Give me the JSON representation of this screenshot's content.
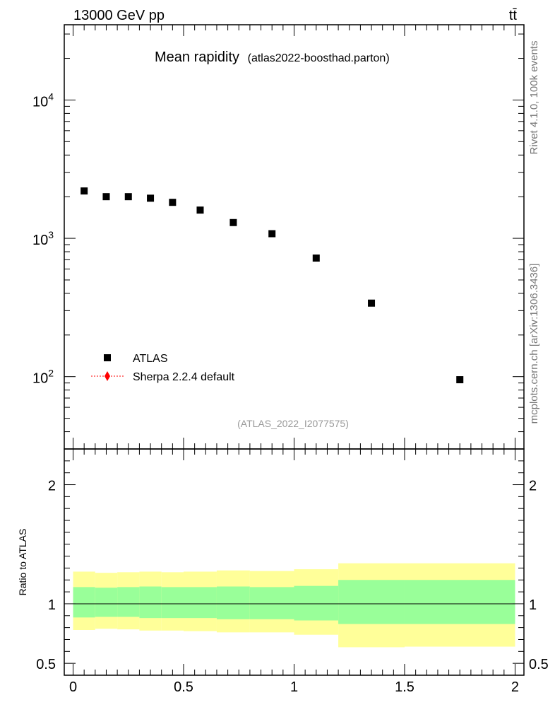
{
  "chart_data": {
    "type": "scatter",
    "header_left": "13000 GeV pp",
    "header_right": "tt̄",
    "title": "Mean rapidity",
    "subtitle": "(atlas2022-boosthad.parton)",
    "side_text_top": "Rivet 4.1.0,  100k events",
    "side_text_bottom": "mcplots.cern.ch [arXiv:1306.3436]",
    "watermark": "(ATLAS_2022_I2077575)",
    "legend": [
      {
        "name": "ATLAS",
        "marker": "square",
        "color": "#000000"
      },
      {
        "name": "Sherpa 2.2.4 default",
        "marker": "diamond",
        "color": "#ff0000"
      }
    ],
    "main": {
      "yscale": "log",
      "ylim": [
        30,
        35000
      ],
      "ytick_labels": [
        {
          "base": "10",
          "exp": "2",
          "value": 100
        },
        {
          "base": "10",
          "exp": "3",
          "value": 1000
        },
        {
          "base": "10",
          "exp": "4",
          "value": 10000
        }
      ],
      "series": [
        {
          "name": "ATLAS",
          "x": [
            0.05,
            0.15,
            0.25,
            0.35,
            0.45,
            0.575,
            0.725,
            0.9,
            1.1,
            1.35,
            1.75
          ],
          "y": [
            2200,
            2000,
            2000,
            1950,
            1820,
            1600,
            1300,
            1080,
            720,
            340,
            95
          ]
        }
      ]
    },
    "ratio": {
      "ylabel": "Ratio to ATLAS",
      "ylim": [
        0.4,
        2.3
      ],
      "ytick_labels": [
        "0.5",
        "1",
        "2"
      ],
      "ytick_values": [
        0.5,
        1,
        2
      ],
      "bands": [
        {
          "lo": 0.0,
          "hi": 0.1,
          "inner": [
            0.885,
            1.14
          ],
          "outer": [
            0.78,
            1.27
          ]
        },
        {
          "lo": 0.1,
          "hi": 0.2,
          "inner": [
            0.89,
            1.135
          ],
          "outer": [
            0.79,
            1.26
          ]
        },
        {
          "lo": 0.2,
          "hi": 0.3,
          "inner": [
            0.89,
            1.14
          ],
          "outer": [
            0.785,
            1.265
          ]
        },
        {
          "lo": 0.3,
          "hi": 0.4,
          "inner": [
            0.88,
            1.145
          ],
          "outer": [
            0.775,
            1.27
          ]
        },
        {
          "lo": 0.4,
          "hi": 0.5,
          "inner": [
            0.88,
            1.14
          ],
          "outer": [
            0.775,
            1.265
          ]
        },
        {
          "lo": 0.5,
          "hi": 0.65,
          "inner": [
            0.88,
            1.14
          ],
          "outer": [
            0.77,
            1.27
          ]
        },
        {
          "lo": 0.65,
          "hi": 0.8,
          "inner": [
            0.87,
            1.145
          ],
          "outer": [
            0.76,
            1.28
          ]
        },
        {
          "lo": 0.8,
          "hi": 1.0,
          "inner": [
            0.87,
            1.14
          ],
          "outer": [
            0.76,
            1.275
          ]
        },
        {
          "lo": 1.0,
          "hi": 1.2,
          "inner": [
            0.86,
            1.15
          ],
          "outer": [
            0.74,
            1.29
          ]
        },
        {
          "lo": 1.2,
          "hi": 1.5,
          "inner": [
            0.83,
            1.2
          ],
          "outer": [
            0.635,
            1.34
          ]
        },
        {
          "lo": 1.5,
          "hi": 2.0,
          "inner": [
            0.83,
            1.2
          ],
          "outer": [
            0.64,
            1.34
          ]
        }
      ],
      "ref_line": 1.0,
      "inner_color": "#99ff99",
      "outer_color": "#ffff99"
    },
    "xaxis": {
      "xlim": [
        -0.04,
        2.04
      ],
      "tick_labels": [
        "0",
        "0.5",
        "1",
        "1.5",
        "2"
      ],
      "tick_values": [
        0,
        0.5,
        1,
        1.5,
        2
      ]
    }
  }
}
